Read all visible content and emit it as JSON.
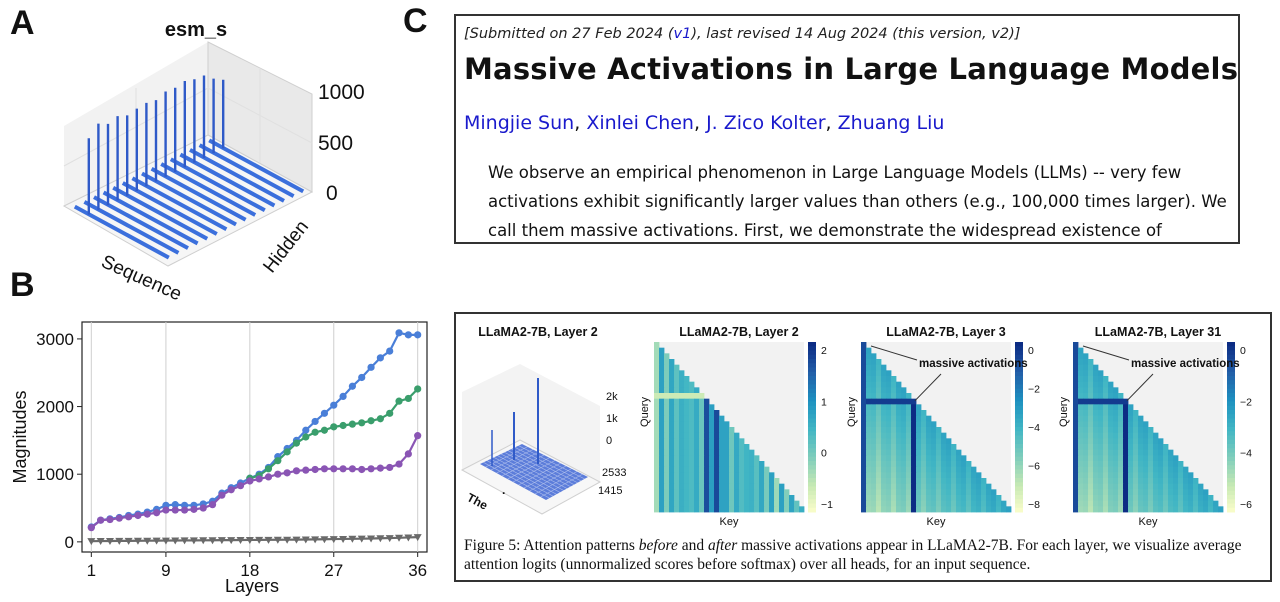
{
  "panels": {
    "a": "A",
    "b": "B",
    "c": "C"
  },
  "arxiv": {
    "submitted_prefix": "[Submitted on 27 Feb 2024 (",
    "v1": "v1",
    "submitted_suffix": "), last revised 14 Aug 2024 (this version, v2)]",
    "title": "Massive Activations in Large Language Models",
    "authors": [
      "Mingjie Sun",
      "Xinlei Chen",
      "J. Zico Kolter",
      "Zhuang Liu"
    ],
    "author_sep": ", ",
    "abstract": "We observe an empirical phenomenon in Large Language Models (LLMs) -- very few activations exhibit significantly larger values than others (e.g., 100,000 times larger). We call them massive activations. First, we demonstrate the widespread existence of"
  },
  "figure5": {
    "caption_prefix": "Figure 5: Attention patterns ",
    "caption_before": "before",
    "caption_and": " and ",
    "caption_after": "after",
    "caption_rest": " massive activations appear in LLaMA2-7B. For each layer, we visualize average attention logits (unnormalized scores before softmax) over all heads, for an input sequence.",
    "plot3d": {
      "title": "LLaMA2-7B, Layer 2",
      "z_ticks": [
        "2k",
        "1k",
        "0"
      ],
      "y_ticks": [
        "2533",
        "1415"
      ],
      "token_label": "The",
      "dot_label": "."
    },
    "heatmaps": [
      {
        "title": "LLaMA2-7B, Layer 2",
        "ticks": [
          "2",
          "1",
          "0",
          "−1"
        ],
        "xlabel": "Key",
        "ylabel": "Query",
        "annotation": ""
      },
      {
        "title": "LLaMA2-7B, Layer 3",
        "ticks": [
          "0",
          "−2",
          "−4",
          "−6",
          "−8"
        ],
        "xlabel": "Key",
        "ylabel": "Query",
        "annotation": "massive activations"
      },
      {
        "title": "LLaMA2-7B, Layer 31",
        "ticks": [
          "0",
          "−2",
          "−4",
          "−6"
        ],
        "xlabel": "Key",
        "ylabel": "Query",
        "annotation": "massive activations"
      }
    ]
  },
  "chart_data": [
    {
      "type": "bar3d",
      "title": "esm_s",
      "xlabel": "Sequence",
      "ylabel": "Hidden",
      "zticks": [
        "1000",
        "500",
        "0"
      ],
      "zlim": [
        0,
        1000
      ],
      "spike_heights": [
        780,
        880,
        830,
        860,
        820,
        840,
        850,
        830,
        870,
        860,
        880,
        850,
        840,
        760,
        700
      ]
    },
    {
      "type": "line",
      "title": "",
      "xlabel": "Layers",
      "ylabel": "Magnitudes",
      "xticks": [
        1,
        9,
        18,
        27,
        36
      ],
      "yticks": [
        0,
        1000,
        2000,
        3000
      ],
      "xlim": [
        0,
        37
      ],
      "ylim": [
        -150,
        3250
      ],
      "grid": "vertical",
      "series": [
        {
          "name": "blue",
          "color": "#4a7fd8",
          "marker": "circle",
          "x": [
            1,
            2,
            3,
            4,
            5,
            6,
            7,
            8,
            9,
            10,
            11,
            12,
            13,
            14,
            15,
            16,
            17,
            18,
            19,
            20,
            21,
            22,
            23,
            24,
            25,
            26,
            27,
            28,
            29,
            30,
            31,
            32,
            33,
            34,
            35,
            36
          ],
          "y": [
            220,
            320,
            340,
            360,
            390,
            410,
            440,
            480,
            540,
            550,
            540,
            540,
            560,
            600,
            720,
            800,
            870,
            940,
            1000,
            1100,
            1260,
            1380,
            1500,
            1650,
            1780,
            1900,
            2020,
            2150,
            2300,
            2430,
            2580,
            2720,
            2820,
            3090,
            3060,
            3060
          ]
        },
        {
          "name": "green",
          "color": "#3a9e6c",
          "marker": "circle",
          "x": [
            18,
            19,
            20,
            21,
            22,
            23,
            24,
            25,
            26,
            27,
            28,
            29,
            30,
            31,
            32,
            33,
            34,
            35,
            36
          ],
          "y": [
            940,
            980,
            1080,
            1200,
            1330,
            1460,
            1550,
            1620,
            1650,
            1700,
            1720,
            1740,
            1760,
            1790,
            1820,
            1900,
            2080,
            2120,
            2260
          ]
        },
        {
          "name": "purple",
          "color": "#8a55b4",
          "marker": "circle",
          "x": [
            1,
            2,
            3,
            4,
            5,
            6,
            7,
            8,
            9,
            10,
            11,
            12,
            13,
            14,
            15,
            16,
            17,
            18,
            19,
            20,
            21,
            22,
            23,
            24,
            25,
            26,
            27,
            28,
            29,
            30,
            31,
            32,
            33,
            34,
            35,
            36
          ],
          "y": [
            210,
            320,
            330,
            350,
            370,
            390,
            410,
            430,
            470,
            470,
            470,
            480,
            500,
            550,
            690,
            770,
            830,
            900,
            930,
            960,
            1000,
            1020,
            1050,
            1060,
            1070,
            1080,
            1080,
            1080,
            1080,
            1070,
            1080,
            1090,
            1100,
            1150,
            1300,
            1570
          ]
        },
        {
          "name": "gray",
          "color": "#6a6a6a",
          "marker": "triangle-down",
          "x": [
            1,
            2,
            3,
            4,
            5,
            6,
            7,
            8,
            9,
            10,
            11,
            12,
            13,
            14,
            15,
            16,
            17,
            18,
            19,
            20,
            21,
            22,
            23,
            24,
            25,
            26,
            27,
            28,
            29,
            30,
            31,
            32,
            33,
            34,
            35,
            36
          ],
          "y": [
            10,
            12,
            13,
            14,
            15,
            16,
            17,
            18,
            19,
            20,
            21,
            22,
            23,
            24,
            25,
            26,
            27,
            28,
            29,
            30,
            31,
            32,
            33,
            35,
            37,
            39,
            41,
            43,
            45,
            47,
            50,
            53,
            56,
            60,
            65,
            70
          ]
        }
      ]
    }
  ]
}
